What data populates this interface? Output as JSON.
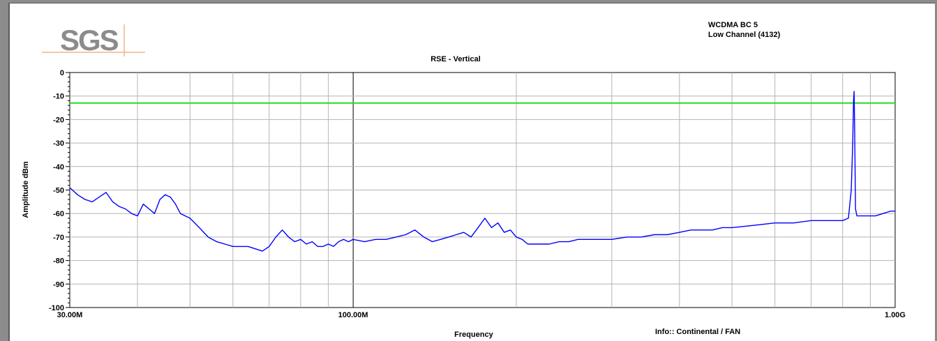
{
  "logo_text": "SGS",
  "header": {
    "line1": "WCDMA BC 5",
    "line2": "Low Channel (4132)"
  },
  "chart_data": {
    "type": "line",
    "title": "RSE - Vertical",
    "xlabel": "Frequency",
    "ylabel": "Amplitude dBm",
    "x_scale": "log",
    "xlim_hz": [
      30000000,
      1000000000
    ],
    "ylim": [
      -100,
      0
    ],
    "x_tick_labels": [
      {
        "hz": 30000000,
        "label": "30.00M"
      },
      {
        "hz": 100000000,
        "label": "100.00M"
      },
      {
        "hz": 1000000000,
        "label": "1.00G"
      }
    ],
    "y_ticks": [
      0,
      -10,
      -20,
      -30,
      -40,
      -50,
      -60,
      -70,
      -80,
      -90,
      -100
    ],
    "y_tick_labels": [
      "0",
      "-10",
      "-20",
      "-30",
      "-40",
      "-50",
      "-60",
      "-70",
      "-80",
      "-90",
      "-100"
    ],
    "grid": true,
    "limit_line": {
      "value": -13,
      "color": "#22dd22"
    },
    "series": [
      {
        "color": "#0000ff",
        "x_mhz": [
          30,
          31,
          32,
          33,
          34,
          35,
          36,
          37,
          38,
          39,
          40,
          41,
          42,
          43,
          44,
          45,
          46,
          47,
          48,
          49,
          50,
          52,
          54,
          56,
          58,
          60,
          62,
          64,
          66,
          68,
          70,
          72,
          74,
          76,
          78,
          80,
          82,
          84,
          86,
          88,
          90,
          92,
          94,
          96,
          98,
          100,
          105,
          110,
          115,
          120,
          125,
          130,
          135,
          140,
          145,
          150,
          155,
          160,
          165,
          170,
          175,
          180,
          185,
          190,
          195,
          200,
          205,
          210,
          220,
          230,
          240,
          250,
          260,
          280,
          300,
          320,
          340,
          360,
          380,
          400,
          420,
          440,
          460,
          480,
          500,
          550,
          600,
          650,
          700,
          750,
          800,
          820,
          830,
          835,
          838,
          840,
          842,
          845,
          850,
          860,
          880,
          900,
          920,
          950,
          980,
          1000
        ],
        "y_dbm": [
          -49,
          -52,
          -54,
          -55,
          -53,
          -51,
          -55,
          -57,
          -58,
          -60,
          -61,
          -56,
          -58,
          -60,
          -54,
          -52,
          -53,
          -56,
          -60,
          -61,
          -62,
          -66,
          -70,
          -72,
          -73,
          -74,
          -74,
          -74,
          -75,
          -76,
          -74,
          -70,
          -67,
          -70,
          -72,
          -71,
          -73,
          -72,
          -74,
          -74,
          -73,
          -74,
          -72,
          -71,
          -72,
          -71,
          -72,
          -71,
          -71,
          -70,
          -69,
          -67,
          -70,
          -72,
          -71,
          -70,
          -69,
          -68,
          -70,
          -66,
          -62,
          -66,
          -64,
          -68,
          -67,
          -70,
          -71,
          -73,
          -73,
          -73,
          -72,
          -72,
          -71,
          -71,
          -71,
          -70,
          -70,
          -69,
          -69,
          -68,
          -67,
          -67,
          -67,
          -66,
          -66,
          -65,
          -64,
          -64,
          -63,
          -63,
          -63,
          -62,
          -50,
          -30,
          -12,
          -8,
          -25,
          -58,
          -61,
          -61,
          -61,
          -61,
          -61,
          -60,
          -59,
          -59
        ]
      }
    ]
  },
  "footer": {
    "info": "Info:: Continental / FAN"
  }
}
